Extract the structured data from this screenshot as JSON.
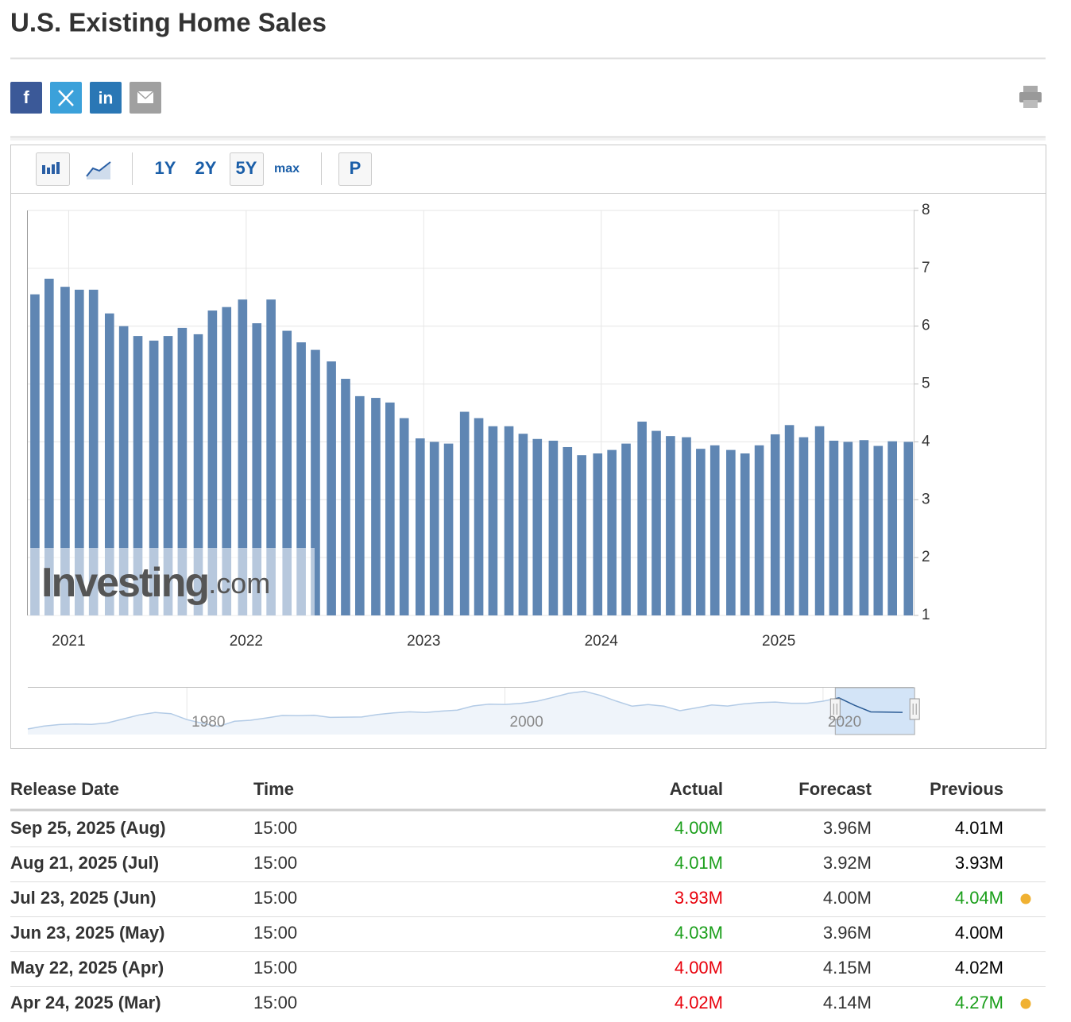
{
  "title": "U.S. Existing Home Sales",
  "share": {
    "facebook": "f",
    "linkedin": "in"
  },
  "toolbar": {
    "ranges": [
      "1Y",
      "2Y",
      "5Y",
      "max"
    ],
    "active_index": 2,
    "p_button": "P"
  },
  "chart_data": [
    {
      "type": "bar",
      "color": "#5f86b3",
      "grid": true,
      "y_axis_side": "right",
      "x": [
        2020.81,
        2020.89,
        2020.98,
        2021.06,
        2021.14,
        2021.23,
        2021.31,
        2021.39,
        2021.48,
        2021.56,
        2021.64,
        2021.73,
        2021.81,
        2021.89,
        2021.98,
        2022.06,
        2022.14,
        2022.23,
        2022.31,
        2022.39,
        2022.48,
        2022.56,
        2022.64,
        2022.73,
        2022.81,
        2022.89,
        2022.98,
        2023.06,
        2023.14,
        2023.23,
        2023.31,
        2023.39,
        2023.48,
        2023.56,
        2023.64,
        2023.73,
        2023.81,
        2023.89,
        2023.98,
        2024.06,
        2024.14,
        2024.23,
        2024.31,
        2024.39,
        2024.48,
        2024.56,
        2024.64,
        2024.73,
        2024.81,
        2024.89,
        2024.98,
        2025.06,
        2025.14,
        2025.23,
        2025.31,
        2025.39,
        2025.48,
        2025.56,
        2025.64,
        2025.73
      ],
      "values": [
        6.55,
        6.82,
        6.68,
        6.63,
        6.63,
        6.22,
        6.0,
        5.83,
        5.75,
        5.83,
        5.97,
        5.86,
        6.27,
        6.33,
        6.46,
        6.05,
        6.46,
        5.92,
        5.72,
        5.59,
        5.39,
        5.09,
        4.79,
        4.76,
        4.68,
        4.41,
        4.06,
        4.0,
        3.97,
        4.52,
        4.41,
        4.27,
        4.27,
        4.14,
        4.05,
        4.02,
        3.91,
        3.77,
        3.8,
        3.86,
        3.97,
        4.35,
        4.19,
        4.1,
        4.08,
        3.88,
        3.94,
        3.86,
        3.8,
        3.94,
        4.13,
        4.29,
        4.08,
        4.27,
        4.02,
        4.0,
        4.03,
        3.93,
        4.01,
        4.0
      ],
      "xlim": [
        2020.77,
        2025.76
      ],
      "xticks": [
        2021,
        2022,
        2023,
        2024,
        2025
      ],
      "ylim": [
        1,
        8
      ],
      "yticks": [
        1,
        2,
        3,
        4,
        5,
        6,
        7,
        8
      ],
      "watermark": {
        "main": "Investing",
        "suffix": ".com"
      }
    },
    {
      "type": "line",
      "color": "#b3cbe6",
      "fill": "#eff4fa",
      "highlight_color": "#2a5b95",
      "highlight_fill": "#d3e4f7",
      "x": [
        1970,
        1971,
        1972,
        1973,
        1974,
        1975,
        1976,
        1977,
        1978,
        1979,
        1980,
        1981,
        1982,
        1983,
        1984,
        1985,
        1986,
        1987,
        1988,
        1989,
        1990,
        1991,
        1992,
        1993,
        1994,
        1995,
        1996,
        1997,
        1998,
        1999,
        2000,
        2001,
        2002,
        2003,
        2004,
        2005,
        2006,
        2007,
        2008,
        2009,
        2010,
        2011,
        2012,
        2013,
        2014,
        2015,
        2016,
        2017,
        2018,
        2019,
        2020,
        2021,
        2022,
        2023,
        2024,
        2025
      ],
      "values": [
        1.61,
        2.02,
        2.25,
        2.33,
        2.27,
        2.48,
        3.06,
        3.65,
        3.99,
        3.83,
        2.97,
        2.42,
        1.99,
        2.72,
        2.87,
        3.21,
        3.57,
        3.53,
        3.59,
        3.29,
        3.32,
        3.35,
        3.7,
        3.95,
        4.1,
        4.0,
        4.2,
        4.35,
        4.95,
        5.2,
        5.17,
        5.33,
        5.63,
        6.18,
        6.78,
        7.08,
        6.48,
        5.65,
        4.91,
        5.16,
        4.91,
        4.26,
        4.66,
        5.09,
        4.94,
        5.25,
        5.45,
        5.51,
        5.34,
        5.34,
        5.64,
        6.12,
        5.03,
        4.09,
        4.06,
        4.02
      ],
      "xlim": [
        1970,
        2025.7
      ],
      "xticks": [
        1980,
        2000,
        2020
      ],
      "ylim": [
        0.8,
        7.6
      ]
    }
  ],
  "table": {
    "headers": [
      "Release Date",
      "Time",
      "Actual",
      "Forecast",
      "Previous"
    ],
    "rows": [
      {
        "release_date": "Sep 25, 2025 (Aug)",
        "time": "15:00",
        "actual": "4.00M",
        "forecast": "3.96M",
        "previous": "4.01M",
        "actual_color": "#1a9e1a",
        "previous_color": "#000000",
        "revised": false
      },
      {
        "release_date": "Aug 21, 2025 (Jul)",
        "time": "15:00",
        "actual": "4.01M",
        "forecast": "3.92M",
        "previous": "3.93M",
        "actual_color": "#1a9e1a",
        "previous_color": "#000000",
        "revised": false
      },
      {
        "release_date": "Jul 23, 2025 (Jun)",
        "time": "15:00",
        "actual": "3.93M",
        "forecast": "4.00M",
        "previous": "4.04M",
        "actual_color": "#e8000b",
        "previous_color": "#1a9e1a",
        "revised": true
      },
      {
        "release_date": "Jun 23, 2025 (May)",
        "time": "15:00",
        "actual": "4.03M",
        "forecast": "3.96M",
        "previous": "4.00M",
        "actual_color": "#1a9e1a",
        "previous_color": "#000000",
        "revised": false
      },
      {
        "release_date": "May 22, 2025 (Apr)",
        "time": "15:00",
        "actual": "4.00M",
        "forecast": "4.15M",
        "previous": "4.02M",
        "actual_color": "#e8000b",
        "previous_color": "#000000",
        "revised": false
      },
      {
        "release_date": "Apr 24, 2025 (Mar)",
        "time": "15:00",
        "actual": "4.02M",
        "forecast": "4.14M",
        "previous": "4.27M",
        "actual_color": "#e8000b",
        "previous_color": "#1a9e1a",
        "revised": true
      }
    ]
  }
}
